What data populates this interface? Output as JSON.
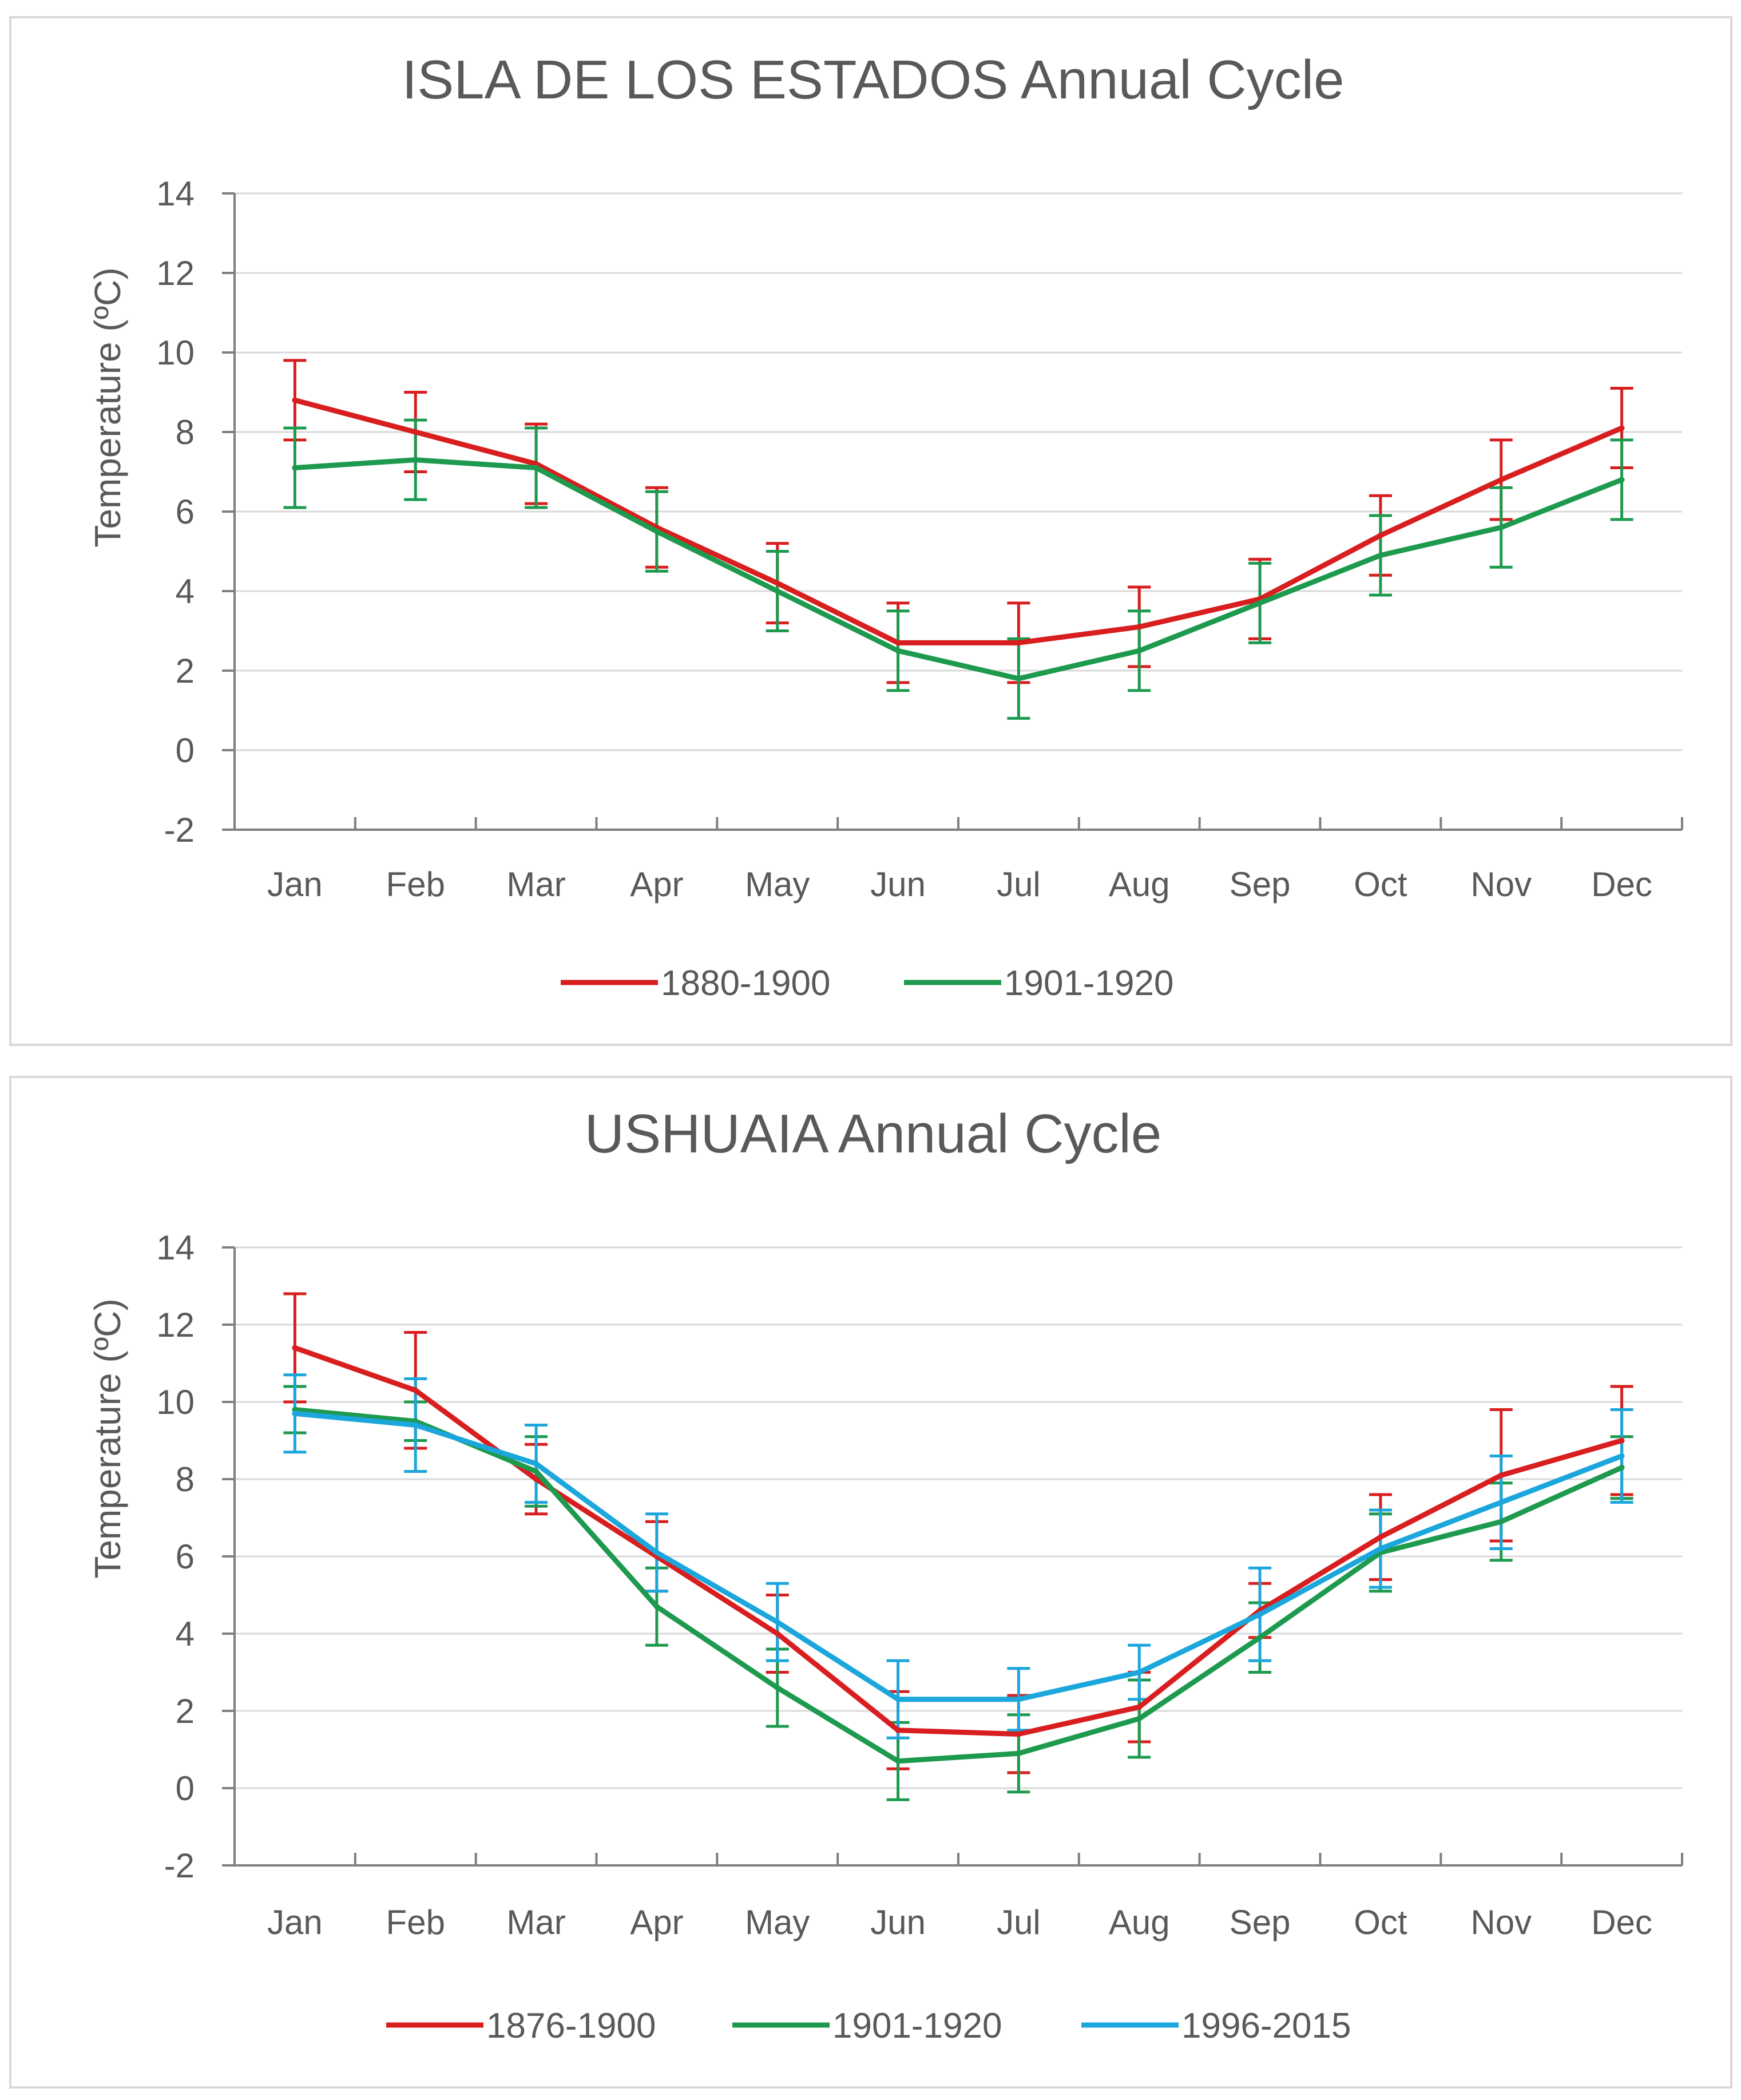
{
  "colors": {
    "red": "#d81e1e",
    "green": "#1e9a4f",
    "blue": "#1ba6dc",
    "axis": "#7f7f7f",
    "grid": "#d9d9d9",
    "text": "#595959"
  },
  "chart_data": [
    {
      "type": "line",
      "title": "ISLA DE LOS ESTADOS Annual Cycle",
      "xlabel": "",
      "ylabel": "Temperature (ºC)",
      "ylim": [
        -2,
        14
      ],
      "yticks": [
        -2,
        0,
        2,
        4,
        6,
        8,
        10,
        12,
        14
      ],
      "grid": true,
      "legend_position": "bottom",
      "categories": [
        "Jan",
        "Feb",
        "Mar",
        "Apr",
        "May",
        "Jun",
        "Jul",
        "Aug",
        "Sep",
        "Oct",
        "Nov",
        "Dec"
      ],
      "series": [
        {
          "name": "1880-1900",
          "color": "red",
          "values": [
            8.8,
            8.0,
            7.2,
            5.6,
            4.2,
            2.7,
            2.7,
            3.1,
            3.8,
            5.4,
            6.8,
            8.1
          ],
          "err": [
            1.0,
            1.0,
            1.0,
            1.0,
            1.0,
            1.0,
            1.0,
            1.0,
            1.0,
            1.0,
            1.0,
            1.0
          ]
        },
        {
          "name": "1901-1920",
          "color": "green",
          "values": [
            7.1,
            7.3,
            7.1,
            5.5,
            4.0,
            2.5,
            1.8,
            2.5,
            3.7,
            4.9,
            5.6,
            6.8
          ],
          "err": [
            1.0,
            1.0,
            1.0,
            1.0,
            1.0,
            1.0,
            1.0,
            1.0,
            1.0,
            1.0,
            1.0,
            1.0
          ]
        }
      ]
    },
    {
      "type": "line",
      "title": "USHUAIA Annual Cycle",
      "xlabel": "",
      "ylabel": "Temperature (ºC)",
      "ylim": [
        -2,
        14
      ],
      "yticks": [
        -2,
        0,
        2,
        4,
        6,
        8,
        10,
        12,
        14
      ],
      "grid": true,
      "legend_position": "bottom",
      "categories": [
        "Jan",
        "Feb",
        "Mar",
        "Apr",
        "May",
        "Jun",
        "Jul",
        "Aug",
        "Sep",
        "Oct",
        "Nov",
        "Dec"
      ],
      "series": [
        {
          "name": "1876-1900",
          "color": "red",
          "values": [
            11.4,
            10.3,
            8.0,
            6.0,
            4.0,
            1.5,
            1.4,
            2.1,
            4.6,
            6.5,
            8.1,
            9.0
          ],
          "err": [
            1.4,
            1.5,
            0.9,
            0.9,
            1.0,
            1.0,
            1.0,
            0.9,
            0.7,
            1.1,
            1.7,
            1.4
          ]
        },
        {
          "name": "1901-1920",
          "color": "green",
          "values": [
            9.8,
            9.5,
            8.2,
            4.7,
            2.6,
            0.7,
            0.9,
            1.8,
            3.9,
            6.1,
            6.9,
            8.3
          ],
          "err": [
            0.6,
            0.5,
            0.9,
            1.0,
            1.0,
            1.0,
            1.0,
            1.0,
            0.9,
            1.0,
            1.0,
            0.8
          ]
        },
        {
          "name": "1996-2015",
          "color": "blue",
          "values": [
            9.7,
            9.4,
            8.4,
            6.1,
            4.3,
            2.3,
            2.3,
            3.0,
            4.5,
            6.2,
            7.4,
            8.6
          ],
          "err": [
            1.0,
            1.2,
            1.0,
            1.0,
            1.0,
            1.0,
            0.8,
            0.7,
            1.2,
            1.0,
            1.2,
            1.2
          ]
        }
      ]
    }
  ]
}
